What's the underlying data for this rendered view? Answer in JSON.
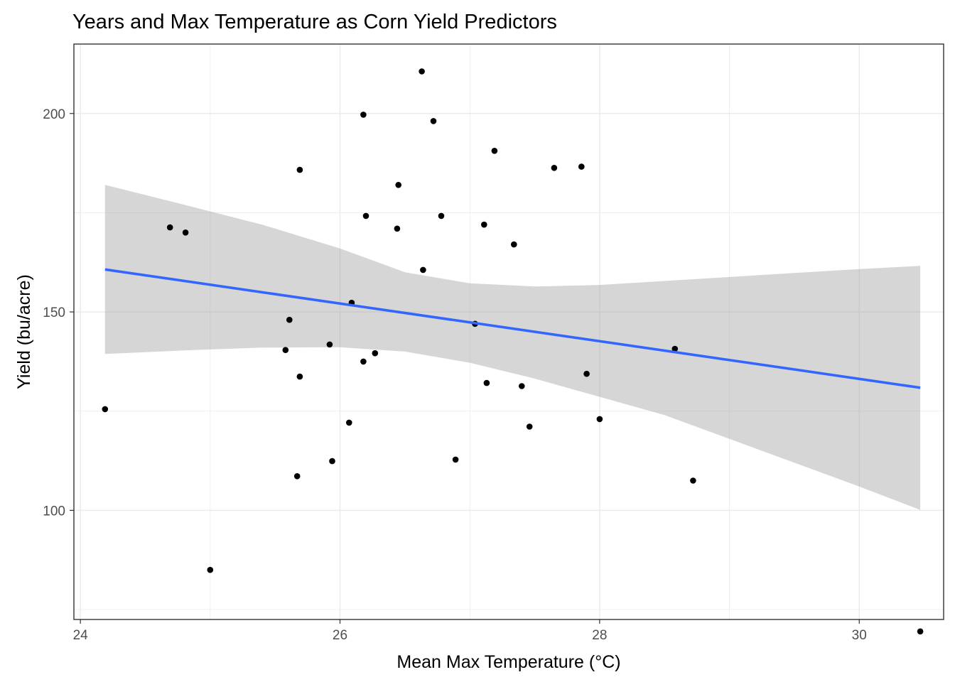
{
  "chart_data": {
    "type": "scatter",
    "title": "Years and Max Temperature as Corn Yield Predictors",
    "xlabel": "Mean Max Temperature (°C)",
    "ylabel": "Yield (bu/acre)",
    "xlim": [
      23.95,
      30.65
    ],
    "ylim": [
      72.5,
      217.5
    ],
    "x_ticks": [
      24,
      26,
      28,
      30
    ],
    "y_ticks": [
      100,
      150,
      200
    ],
    "x_minor": [
      25,
      27,
      29
    ],
    "y_minor": [
      75,
      125,
      175
    ],
    "grid": true,
    "legend": "none",
    "colors": {
      "points": "#000000",
      "trend_line": "#3366FF",
      "confidence_band": "#999999",
      "panel_border": "#333333",
      "grid": "#ebebeb",
      "tick_text": "#4d4d4d"
    },
    "points": [
      {
        "x": 24.19,
        "y": 125.5
      },
      {
        "x": 24.69,
        "y": 171.3
      },
      {
        "x": 24.81,
        "y": 170.0
      },
      {
        "x": 25.0,
        "y": 85.0
      },
      {
        "x": 25.58,
        "y": 140.4
      },
      {
        "x": 25.61,
        "y": 148.0
      },
      {
        "x": 25.67,
        "y": 108.6
      },
      {
        "x": 25.69,
        "y": 185.8
      },
      {
        "x": 25.69,
        "y": 133.7
      },
      {
        "x": 25.92,
        "y": 141.8
      },
      {
        "x": 25.94,
        "y": 112.4
      },
      {
        "x": 26.07,
        "y": 122.1
      },
      {
        "x": 26.09,
        "y": 152.3
      },
      {
        "x": 26.18,
        "y": 199.7
      },
      {
        "x": 26.18,
        "y": 137.5
      },
      {
        "x": 26.2,
        "y": 174.2
      },
      {
        "x": 26.27,
        "y": 139.6
      },
      {
        "x": 26.44,
        "y": 171.0
      },
      {
        "x": 26.45,
        "y": 182.0
      },
      {
        "x": 26.63,
        "y": 210.6
      },
      {
        "x": 26.64,
        "y": 160.6
      },
      {
        "x": 26.72,
        "y": 198.1
      },
      {
        "x": 26.78,
        "y": 174.2
      },
      {
        "x": 26.89,
        "y": 112.8
      },
      {
        "x": 27.04,
        "y": 147.0
      },
      {
        "x": 27.11,
        "y": 172.0
      },
      {
        "x": 27.13,
        "y": 132.1
      },
      {
        "x": 27.19,
        "y": 190.6
      },
      {
        "x": 27.34,
        "y": 167.0
      },
      {
        "x": 27.4,
        "y": 131.3
      },
      {
        "x": 27.46,
        "y": 121.1
      },
      {
        "x": 27.65,
        "y": 186.3
      },
      {
        "x": 27.86,
        "y": 186.6
      },
      {
        "x": 27.9,
        "y": 134.4
      },
      {
        "x": 28.0,
        "y": 123.0
      },
      {
        "x": 28.58,
        "y": 140.7
      },
      {
        "x": 28.72,
        "y": 107.5
      },
      {
        "x": 30.47,
        "y": 69.5
      }
    ],
    "trend": {
      "method": "lm",
      "x_range": [
        24.19,
        30.47
      ],
      "y_at_range": [
        160.7,
        130.9
      ]
    },
    "confidence_band": {
      "x": [
        24.19,
        24.8,
        25.4,
        26.0,
        26.5,
        27.0,
        27.5,
        28.0,
        28.5,
        29.0,
        29.5,
        30.0,
        30.47
      ],
      "upper": [
        182.0,
        177.0,
        172.0,
        166.0,
        160.0,
        157.2,
        156.4,
        156.8,
        157.8,
        158.8,
        159.8,
        160.8,
        161.6
      ],
      "lower": [
        139.4,
        140.3,
        141.0,
        141.1,
        140.0,
        137.2,
        133.2,
        128.6,
        124.0,
        118.0,
        112.0,
        106.0,
        100.1
      ]
    }
  }
}
